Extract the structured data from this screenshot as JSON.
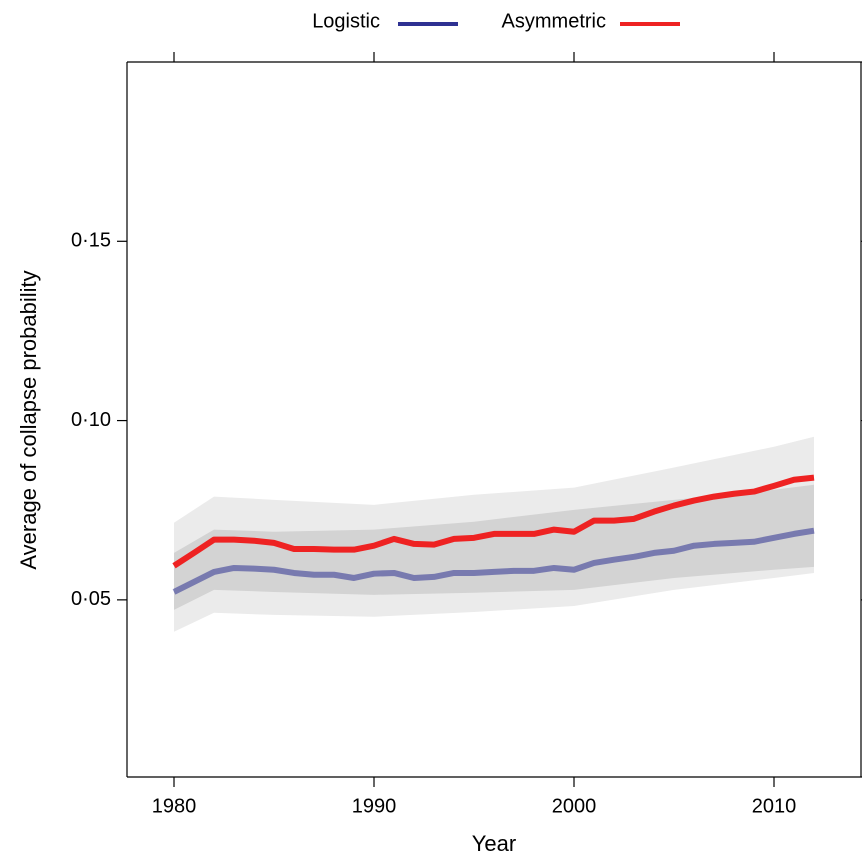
{
  "chart_data": {
    "type": "line",
    "x_label": "Year",
    "y_label": "Average of collapse probability",
    "x": [
      1980,
      1981,
      1982,
      1983,
      1984,
      1985,
      1986,
      1987,
      1988,
      1989,
      1990,
      1991,
      1992,
      1993,
      1994,
      1995,
      1996,
      1997,
      1998,
      1999,
      2000,
      2001,
      2002,
      2003,
      2004,
      2005,
      2006,
      2007,
      2008,
      2009,
      2010,
      2011,
      2012
    ],
    "series": [
      {
        "name": "Logistic",
        "color": "#2e3192",
        "values": [
          0.0522,
          0.055,
          0.0578,
          0.0589,
          0.0587,
          0.0584,
          0.0575,
          0.057,
          0.057,
          0.0561,
          0.0573,
          0.0575,
          0.0561,
          0.0564,
          0.0575,
          0.0575,
          0.0578,
          0.0581,
          0.0581,
          0.0589,
          0.0584,
          0.0603,
          0.0612,
          0.062,
          0.0631,
          0.0637,
          0.0651,
          0.0656,
          0.0659,
          0.0662,
          0.0673,
          0.0684,
          0.0693
        ]
      },
      {
        "name": "Asymmetric",
        "color": "#ee2222",
        "values": [
          0.0595,
          0.0631,
          0.0668,
          0.0668,
          0.0665,
          0.0659,
          0.0642,
          0.0642,
          0.064,
          0.064,
          0.0651,
          0.067,
          0.0656,
          0.0654,
          0.067,
          0.0673,
          0.0684,
          0.0684,
          0.0684,
          0.0696,
          0.069,
          0.0721,
          0.0721,
          0.0726,
          0.0746,
          0.0763,
          0.0777,
          0.0788,
          0.0796,
          0.0802,
          0.0818,
          0.0835,
          0.0841
        ]
      }
    ],
    "bands": [
      {
        "color": "#ebebeb",
        "x": [
          1980,
          1982,
          1985,
          1990,
          1995,
          2000,
          2005,
          2010,
          2012
        ],
        "lower": [
          0.0411,
          0.0464,
          0.0458,
          0.0453,
          0.0466,
          0.0483,
          0.0528,
          0.0561,
          0.0575
        ],
        "upper": [
          0.0715,
          0.0788,
          0.0779,
          0.0765,
          0.0793,
          0.0813,
          0.0869,
          0.0927,
          0.0955
        ]
      },
      {
        "color": "#d3d3d3",
        "x": [
          1980,
          1982,
          1985,
          1990,
          1995,
          2000,
          2005,
          2010,
          2012
        ],
        "lower": [
          0.0472,
          0.0528,
          0.0522,
          0.0514,
          0.052,
          0.0528,
          0.0561,
          0.0584,
          0.0592
        ],
        "upper": [
          0.0631,
          0.0696,
          0.069,
          0.0696,
          0.0718,
          0.0751,
          0.0779,
          0.0807,
          0.0821
        ]
      }
    ],
    "xlim": [
      1977.65,
      2014.4
    ],
    "ylim": [
      0.0006,
      0.2
    ],
    "xticks": [
      1980,
      1990,
      2000,
      2010
    ],
    "yticks": [
      {
        "value": 0.05,
        "label": "0·05"
      },
      {
        "value": 0.1,
        "label": "0·10"
      },
      {
        "value": 0.15,
        "label": "0·15"
      }
    ],
    "legend": "top"
  }
}
